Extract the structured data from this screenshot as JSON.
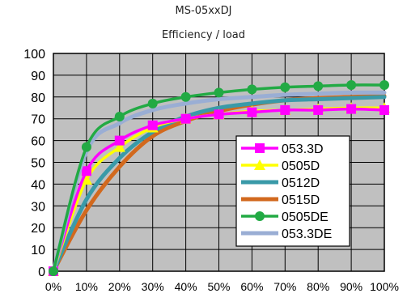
{
  "chart_data": {
    "type": "line",
    "title": "MS-05xxDJ",
    "subtitle": "Efficiency / load",
    "xlabel": "",
    "ylabel": "",
    "categories": [
      "0%",
      "10%",
      "20%",
      "30%",
      "40%",
      "50%",
      "60%",
      "70%",
      "80%",
      "90%",
      "100%"
    ],
    "ylim": [
      0,
      100
    ],
    "ytick_labels": [
      "0",
      "10",
      "20",
      "30",
      "40",
      "50",
      "60",
      "70",
      "80",
      "90",
      "100"
    ],
    "grid": true,
    "legend_position": "center-right",
    "series": [
      {
        "name": "053.3D",
        "color": "#ff00ff",
        "marker": "square",
        "values": [
          0,
          46,
          60,
          67,
          70,
          72,
          73,
          74,
          74,
          74.5,
          74
        ]
      },
      {
        "name": "0505D",
        "color": "#ffff00",
        "marker": "triangle",
        "values": [
          0,
          42,
          57,
          66,
          70,
          72,
          73.5,
          74,
          74.5,
          75,
          75
        ]
      },
      {
        "name": "0512D",
        "color": "#3a9aa8",
        "marker": "none",
        "values": [
          0,
          33,
          52,
          64,
          71,
          75,
          77,
          78.5,
          79,
          79.5,
          80
        ]
      },
      {
        "name": "0515D",
        "color": "#d2691e",
        "marker": "none",
        "values": [
          0,
          28,
          48,
          62,
          69,
          73.5,
          76.5,
          78.5,
          79.5,
          80,
          80.5
        ]
      },
      {
        "name": "0505DE",
        "color": "#22aa44",
        "marker": "circle",
        "values": [
          0,
          57,
          71,
          77,
          80,
          82,
          83.5,
          84.5,
          85,
          85.5,
          85.5
        ]
      },
      {
        "name": "053.3DE",
        "color": "#9aaed4",
        "marker": "none",
        "values": [
          0,
          55,
          68,
          74,
          77,
          79,
          80,
          81,
          81.5,
          82,
          82
        ]
      }
    ]
  }
}
